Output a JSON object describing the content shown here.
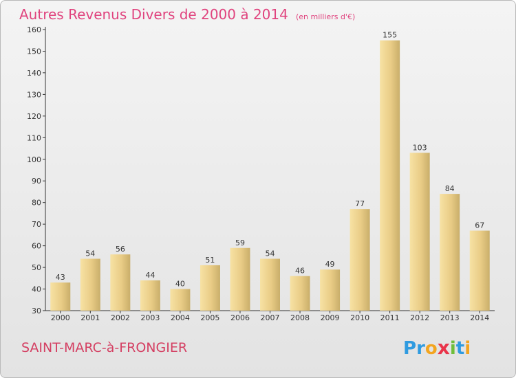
{
  "title": "Autres Revenus Divers de 2000 à 2014",
  "subtitle": "(en milliers d'€)",
  "town_name": "SAINT-MARC-à-FRONGIER",
  "logo": {
    "text": "Proxiti",
    "letters": [
      {
        "char": "P",
        "color": "#2f9be0"
      },
      {
        "char": "r",
        "color": "#2f9be0"
      },
      {
        "char": "o",
        "color": "#f3a51f"
      },
      {
        "char": "x",
        "color": "#e9344a"
      },
      {
        "char": "i",
        "color": "#6fbe3b"
      },
      {
        "char": "t",
        "color": "#2f9be0"
      },
      {
        "char": "i",
        "color": "#f3a51f"
      }
    ]
  },
  "colors": {
    "title": "#e0437e",
    "town": "#d44063",
    "bar_light": "#f5dc96",
    "bar_dark": "#c9ae6a"
  },
  "chart_data": {
    "type": "bar",
    "title": "Autres Revenus Divers de 2000 à 2014",
    "subtitle": "(en milliers d'€)",
    "categories": [
      "2000",
      "2001",
      "2002",
      "2003",
      "2004",
      "2005",
      "2006",
      "2007",
      "2008",
      "2009",
      "2010",
      "2011",
      "2012",
      "2013",
      "2014"
    ],
    "values": [
      43,
      54,
      56,
      44,
      40,
      51,
      59,
      54,
      46,
      49,
      77,
      155,
      103,
      84,
      67
    ],
    "xlabel": "",
    "ylabel": "",
    "ylim": [
      30,
      160
    ],
    "yticks": [
      30,
      40,
      50,
      60,
      70,
      80,
      90,
      100,
      110,
      120,
      130,
      140,
      150,
      160
    ],
    "grid": false,
    "legend": "none"
  }
}
